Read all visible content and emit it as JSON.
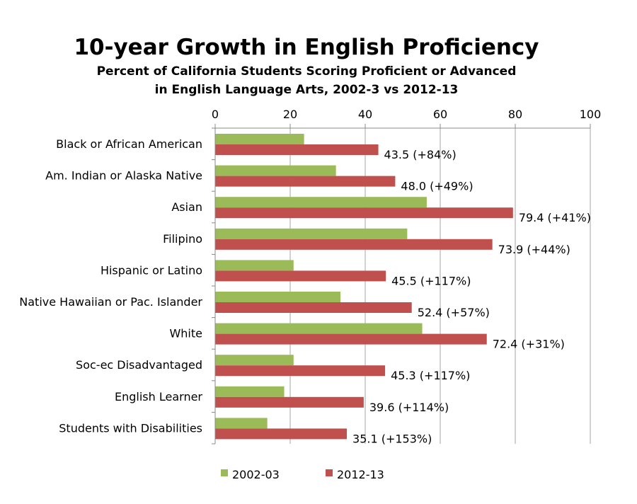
{
  "chart_data": {
    "type": "bar",
    "orientation": "horizontal",
    "title": "10-year Growth in English Proficiency",
    "subtitle_lines": [
      "Percent of California Students Scoring Proficient or Advanced",
      "in English Language Arts, 2002-3 vs 2012-13"
    ],
    "categories": [
      "Black or African American",
      "Am. Indian or Alaska Native",
      "Asian",
      "Filipino",
      "Hispanic or Latino",
      "Native Hawaiian or Pac. Islander",
      "White",
      "Soc-ec Disadvantaged",
      "English Learner",
      "Students with Disabilities"
    ],
    "series": [
      {
        "name": "2002-03",
        "color": "#9BBB59",
        "values": [
          23.7,
          32.2,
          56.4,
          51.2,
          20.9,
          33.4,
          55.2,
          20.9,
          18.4,
          13.9
        ]
      },
      {
        "name": "2012-13",
        "color": "#C0504D",
        "values": [
          43.5,
          48.0,
          79.4,
          73.9,
          45.5,
          52.4,
          72.4,
          45.3,
          39.6,
          35.1
        ],
        "data_labels": [
          "43.5 (+84%)",
          "48.0 (+49%)",
          "79.4 (+41%)",
          "73.9 (+44%)",
          "45.5 (+117%)",
          "52.4 (+57%)",
          "72.4 (+31%)",
          "45.3 (+117%)",
          "39.6 (+114%)",
          "35.1 (+153%)"
        ]
      }
    ],
    "xlim": [
      0,
      100
    ],
    "xticks": [
      0,
      20,
      40,
      60,
      80,
      100
    ],
    "x_axis_position": "top",
    "grid": true,
    "legend_position": "bottom"
  }
}
